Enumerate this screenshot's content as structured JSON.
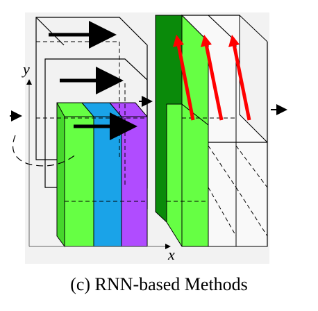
{
  "caption": "(c) RNN-based Methods",
  "axes": {
    "x_label": "x",
    "y_label": "y"
  },
  "colors": {
    "panel_bg": "#f2f2f2",
    "green": "#66ff44",
    "cyan": "#1aa3e8",
    "purple": "#b04cff",
    "dark_green": "#0a8a0a",
    "red_arrow": "#ff0000",
    "black_arrow": "#000000"
  },
  "icons": {
    "input_arrow": "right-arrow-icon",
    "middle_arrow": "right-arrow-icon",
    "output_arrow": "right-arrow-icon",
    "horizontal_scan_arrows": "black-right-arrow-icon",
    "vertical_scan_arrows": "red-up-arrow-icon"
  }
}
